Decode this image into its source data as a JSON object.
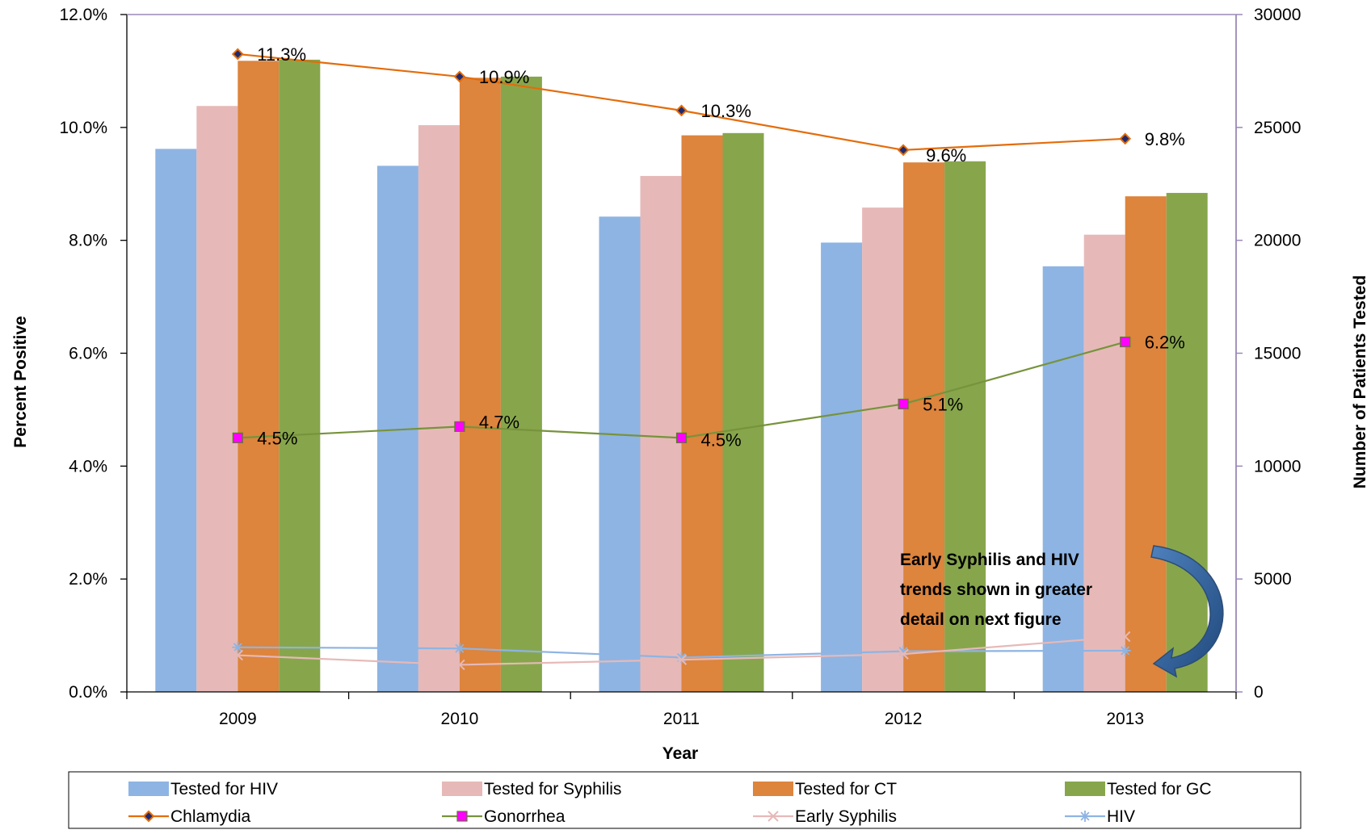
{
  "chart_data": {
    "type": "bar",
    "categories": [
      "2009",
      "2010",
      "2011",
      "2012",
      "2013"
    ],
    "xlabel": "Year",
    "ylabel": "Percent Positive",
    "y2label": "Number of Patients Tested",
    "ylim": [
      0,
      12
    ],
    "y2lim": [
      0,
      30000
    ],
    "y_ticks": [
      "0.0%",
      "2.0%",
      "4.0%",
      "6.0%",
      "8.0%",
      "10.0%",
      "12.0%"
    ],
    "y2_ticks": [
      "0",
      "5000",
      "10000",
      "15000",
      "20000",
      "25000",
      "30000"
    ],
    "grid": false,
    "legend_position": "bottom",
    "bar_series": [
      {
        "name": "Tested for HIV",
        "color": "#8EB4E3",
        "values": [
          24050,
          23300,
          21050,
          19900,
          18850
        ]
      },
      {
        "name": "Tested for Syphilis",
        "color": "#E6B9B8",
        "values": [
          25950,
          25100,
          22850,
          21450,
          20250
        ]
      },
      {
        "name": "Tested for CT",
        "color": "#DD843D",
        "values": [
          27950,
          27200,
          24650,
          23450,
          21950
        ]
      },
      {
        "name": "Tested for GC",
        "color": "#87A64C",
        "values": [
          28000,
          27250,
          24750,
          23500,
          22100
        ]
      }
    ],
    "line_series": [
      {
        "name": "Chlamydia",
        "color": "#E46C0A",
        "marker": "diamond",
        "values": [
          11.3,
          10.9,
          10.3,
          9.6,
          9.8
        ],
        "labels": [
          "11.3%",
          "10.9%",
          "10.3%",
          "9.6%",
          "9.8%"
        ]
      },
      {
        "name": "Gonorrhea",
        "color": "#77933C",
        "marker": "square",
        "values": [
          4.5,
          4.7,
          4.5,
          5.1,
          6.2
        ],
        "labels": [
          "4.5%",
          "4.7%",
          "4.5%",
          "5.1%",
          "6.2%"
        ]
      },
      {
        "name": "Early Syphilis",
        "color": "#E6B9B8",
        "marker": "x",
        "values": [
          0.65,
          0.48,
          0.57,
          0.67,
          0.98
        ]
      },
      {
        "name": "HIV",
        "color": "#8EB4E3",
        "marker": "star",
        "values": [
          0.79,
          0.77,
          0.61,
          0.72,
          0.73
        ]
      }
    ],
    "annotation": {
      "lines": [
        "Early Syphilis and HIV",
        "trends shown in greater",
        "detail on next figure"
      ]
    }
  }
}
